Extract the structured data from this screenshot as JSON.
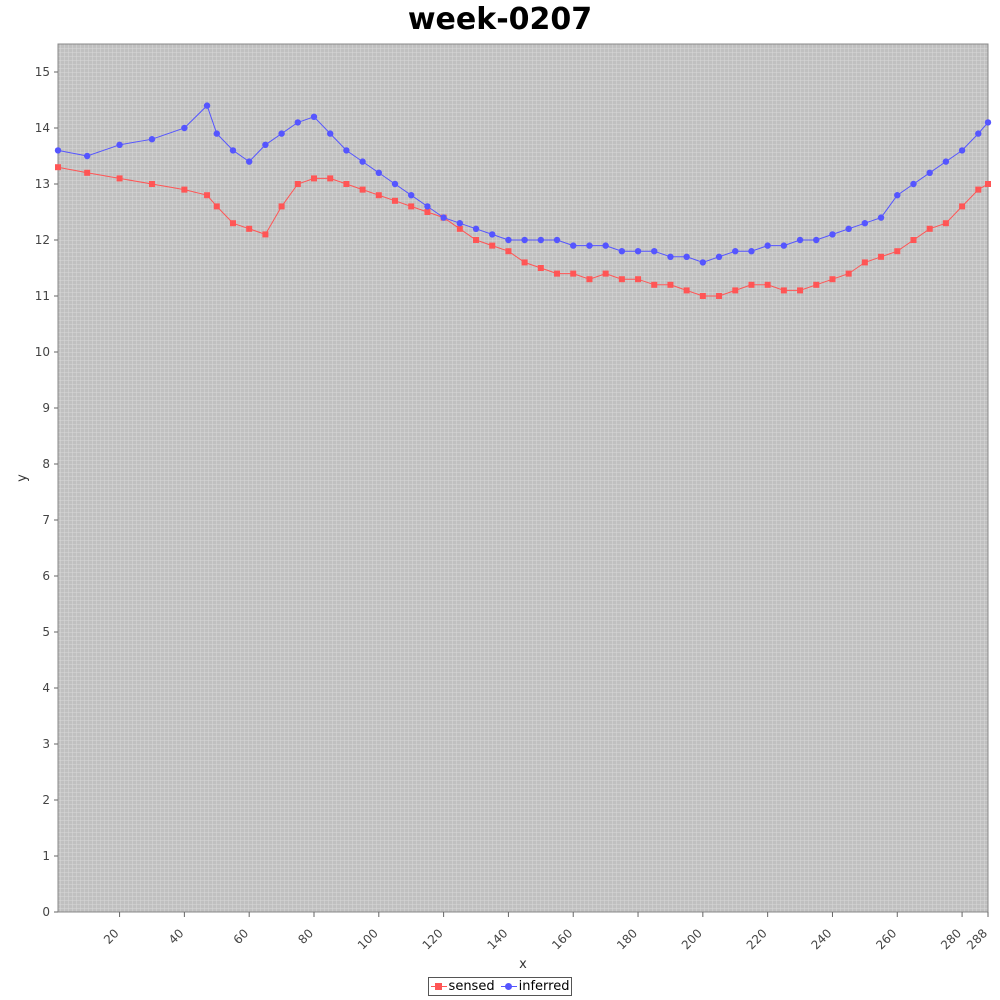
{
  "chart_data": {
    "type": "line",
    "title": "week-0207",
    "xlabel": "x",
    "ylabel": "y",
    "xlim": [
      1,
      288
    ],
    "ylim": [
      0,
      15.5
    ],
    "x_ticks": [
      20,
      40,
      60,
      80,
      100,
      120,
      140,
      160,
      180,
      200,
      220,
      240,
      260,
      280,
      288
    ],
    "y_ticks": [
      0,
      1,
      2,
      3,
      4,
      5,
      6,
      7,
      8,
      9,
      10,
      11,
      12,
      13,
      14,
      15
    ],
    "grid": true,
    "legend_position": "bottom-center",
    "series": [
      {
        "name": "sensed",
        "color": "#ff5555",
        "marker": "square",
        "x": [
          1,
          10,
          20,
          30,
          40,
          47,
          50,
          55,
          60,
          65,
          70,
          75,
          80,
          85,
          90,
          95,
          100,
          105,
          110,
          115,
          120,
          125,
          130,
          135,
          140,
          145,
          150,
          155,
          160,
          165,
          170,
          175,
          180,
          185,
          190,
          195,
          200,
          205,
          210,
          215,
          220,
          225,
          230,
          235,
          240,
          245,
          250,
          255,
          260,
          265,
          270,
          275,
          280,
          285,
          288
        ],
        "y": [
          13.3,
          13.2,
          13.1,
          13.0,
          12.9,
          12.8,
          12.6,
          12.3,
          12.2,
          12.1,
          12.6,
          13.0,
          13.1,
          13.1,
          13.0,
          12.9,
          12.8,
          12.7,
          12.6,
          12.5,
          12.4,
          12.2,
          12.0,
          11.9,
          11.8,
          11.6,
          11.5,
          11.4,
          11.4,
          11.3,
          11.4,
          11.3,
          11.3,
          11.2,
          11.2,
          11.1,
          11.0,
          11.0,
          11.1,
          11.2,
          11.2,
          11.1,
          11.1,
          11.2,
          11.3,
          11.4,
          11.6,
          11.7,
          11.8,
          12.0,
          12.2,
          12.3,
          12.6,
          12.9,
          13.0
        ]
      },
      {
        "name": "inferred",
        "color": "#5555ff",
        "marker": "circle",
        "x": [
          1,
          10,
          20,
          30,
          40,
          47,
          50,
          55,
          60,
          65,
          70,
          75,
          80,
          85,
          90,
          95,
          100,
          105,
          110,
          115,
          120,
          125,
          130,
          135,
          140,
          145,
          150,
          155,
          160,
          165,
          170,
          175,
          180,
          185,
          190,
          195,
          200,
          205,
          210,
          215,
          220,
          225,
          230,
          235,
          240,
          245,
          250,
          255,
          260,
          265,
          270,
          275,
          280,
          285,
          288
        ],
        "y": [
          13.6,
          13.5,
          13.7,
          13.8,
          14.0,
          14.4,
          13.9,
          13.6,
          13.4,
          13.7,
          13.9,
          14.1,
          14.2,
          13.9,
          13.6,
          13.4,
          13.2,
          13.0,
          12.8,
          12.6,
          12.4,
          12.3,
          12.2,
          12.1,
          12.0,
          12.0,
          12.0,
          12.0,
          11.9,
          11.9,
          11.9,
          11.8,
          11.8,
          11.8,
          11.7,
          11.7,
          11.6,
          11.7,
          11.8,
          11.8,
          11.9,
          11.9,
          12.0,
          12.0,
          12.1,
          12.2,
          12.3,
          12.4,
          12.8,
          13.0,
          13.2,
          13.4,
          13.6,
          13.9,
          14.1
        ]
      }
    ]
  }
}
